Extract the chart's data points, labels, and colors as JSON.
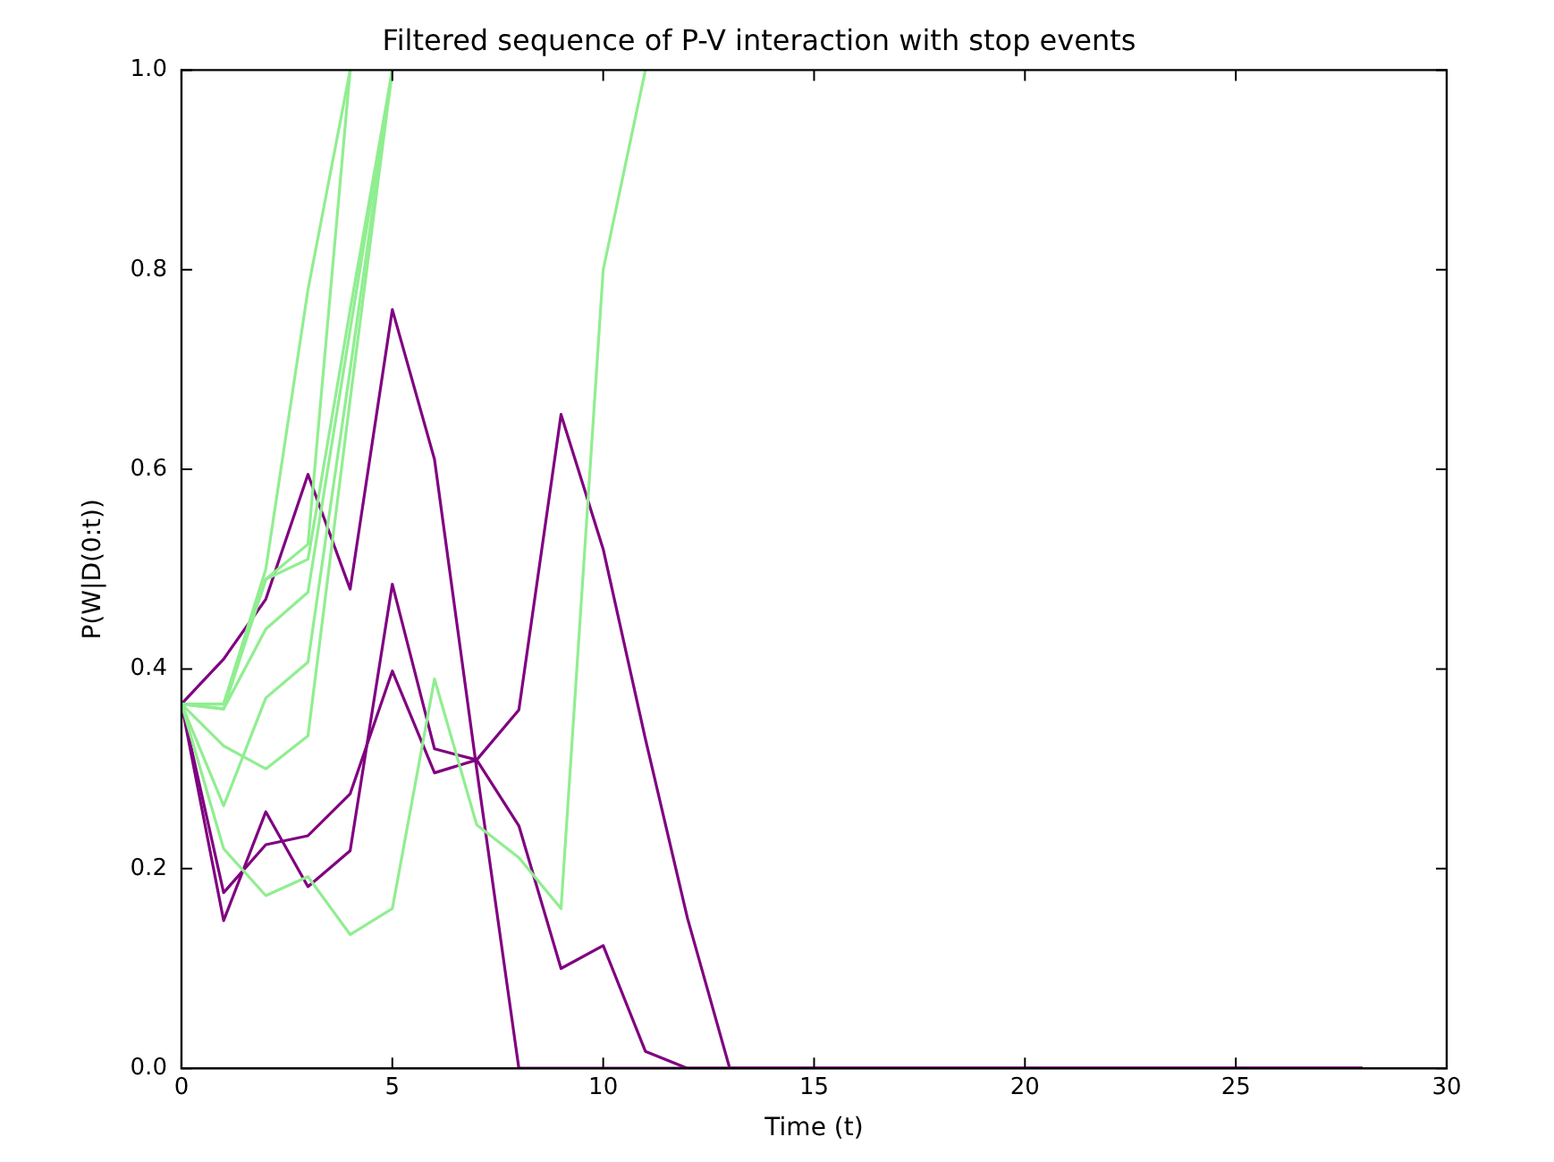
{
  "chart_data": {
    "type": "line",
    "title": "Filtered sequence of P-V interaction with stop events",
    "xlabel": "Time (t)",
    "ylabel": "P(W|D(0:t))",
    "xlim": [
      0,
      30
    ],
    "xticks": [
      0,
      5,
      10,
      15,
      20,
      25,
      30
    ],
    "ylim": [
      0,
      1
    ],
    "yticks": [
      {
        "value": 0,
        "label": "0.0"
      },
      {
        "value": 0.2,
        "label": "0.2"
      },
      {
        "value": 0.4,
        "label": "0.4"
      },
      {
        "value": 0.6,
        "label": "0.6"
      },
      {
        "value": 0.8,
        "label": "0.8"
      },
      {
        "value": 1,
        "label": "1.0"
      }
    ],
    "grid": false,
    "legend": false,
    "marker": "none",
    "line_style": "solid",
    "series": [
      {
        "color": "#90ee90",
        "x": [
          0,
          1,
          2,
          3,
          4
        ],
        "values": [
          0.365,
          0.365,
          0.5,
          0.78,
          1.0
        ]
      },
      {
        "color": "#90ee90",
        "x": [
          0,
          1,
          2,
          3,
          4
        ],
        "values": [
          0.365,
          0.36,
          0.49,
          0.525,
          1.0
        ]
      },
      {
        "color": "#90ee90",
        "x": [
          0,
          1,
          2,
          3,
          4,
          5
        ],
        "values": [
          0.365,
          0.365,
          0.49,
          0.51,
          0.76,
          1.0
        ]
      },
      {
        "color": "#90ee90",
        "x": [
          0,
          1,
          2,
          3,
          4,
          5
        ],
        "values": [
          0.365,
          0.36,
          0.44,
          0.477,
          0.74,
          1.0
        ]
      },
      {
        "color": "#90ee90",
        "x": [
          0,
          1,
          2,
          3,
          4,
          5
        ],
        "values": [
          0.365,
          0.263,
          0.371,
          0.407,
          0.7,
          1.0
        ]
      },
      {
        "color": "#90ee90",
        "x": [
          0,
          1,
          2,
          3,
          4,
          5
        ],
        "values": [
          0.365,
          0.323,
          0.3,
          0.333,
          0.67,
          1.0
        ]
      },
      {
        "color": "#90ee90",
        "x": [
          0,
          1,
          2,
          3,
          4,
          5,
          6,
          7,
          8,
          9,
          10,
          11
        ],
        "values": [
          0.365,
          0.22,
          0.173,
          0.192,
          0.134,
          0.16,
          0.39,
          0.244,
          0.211,
          0.16,
          0.8,
          1.0
        ]
      },
      {
        "color": "#800080",
        "x": [
          0,
          1,
          2,
          3,
          4,
          5,
          6,
          7,
          8,
          9,
          10,
          11,
          12,
          13,
          14,
          15,
          16,
          17,
          18,
          19,
          20,
          21,
          22,
          23,
          24,
          25,
          26,
          27,
          28
        ],
        "values": [
          0.365,
          0.41,
          0.47,
          0.595,
          0.48,
          0.76,
          0.61,
          0.3,
          0,
          0,
          0,
          0,
          0,
          0,
          0,
          0,
          0,
          0,
          0,
          0,
          0,
          0,
          0,
          0,
          0,
          0,
          0,
          0,
          0
        ]
      },
      {
        "color": "#800080",
        "x": [
          0,
          1,
          2,
          3,
          4,
          5,
          6,
          7,
          8,
          9,
          10,
          11,
          12,
          13,
          14,
          15,
          16,
          17,
          18,
          19,
          20,
          21,
          22,
          23,
          24,
          25,
          26,
          27,
          28
        ],
        "values": [
          0.365,
          0.148,
          0.257,
          0.182,
          0.218,
          0.485,
          0.32,
          0.309,
          0.359,
          0.655,
          0.52,
          0.33,
          0.15,
          0,
          0,
          0,
          0,
          0,
          0,
          0,
          0,
          0,
          0,
          0,
          0,
          0,
          0,
          0,
          0
        ]
      },
      {
        "color": "#800080",
        "x": [
          0,
          1,
          2,
          3,
          4,
          5,
          6,
          7,
          8,
          9,
          10,
          11,
          12,
          13,
          14,
          15,
          16,
          17,
          18,
          19,
          20,
          21,
          22,
          23,
          24,
          25,
          26,
          27,
          28
        ],
        "values": [
          0.365,
          0.176,
          0.224,
          0.233,
          0.275,
          0.398,
          0.296,
          0.309,
          0.243,
          0.1,
          0.123,
          0.017,
          0,
          0,
          0,
          0,
          0,
          0,
          0,
          0,
          0,
          0,
          0,
          0,
          0,
          0,
          0,
          0,
          0
        ]
      }
    ]
  }
}
